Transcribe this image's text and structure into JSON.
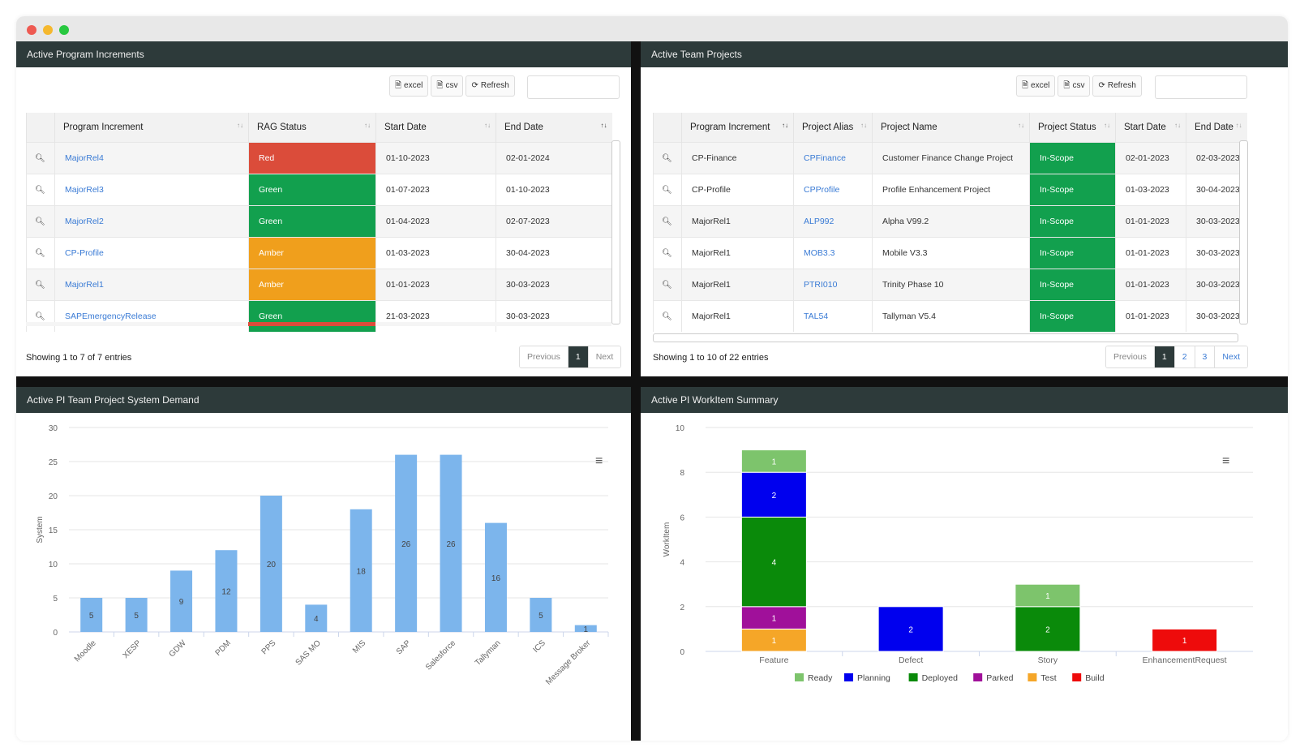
{
  "panels": {
    "pi": {
      "title": "Active Program Increments"
    },
    "tp": {
      "title": "Active Team Projects"
    },
    "demand": {
      "title": "Active PI Team Project System Demand"
    },
    "workitem": {
      "title": "Active PI WorkItem Summary"
    }
  },
  "toolbar": {
    "excel": "excel",
    "csv": "csv",
    "refresh": "Refresh"
  },
  "pi_table": {
    "headers": [
      "Program Increment",
      "RAG Status",
      "Start Date",
      "End Date"
    ],
    "rows": [
      {
        "pi": "MajorRel4",
        "rag": "Red",
        "rag_color": "red",
        "start": "01-10-2023",
        "end": "02-01-2024"
      },
      {
        "pi": "MajorRel3",
        "rag": "Green",
        "rag_color": "green",
        "start": "01-07-2023",
        "end": "01-10-2023"
      },
      {
        "pi": "MajorRel2",
        "rag": "Green",
        "rag_color": "green",
        "start": "01-04-2023",
        "end": "02-07-2023"
      },
      {
        "pi": "CP-Profile",
        "rag": "Amber",
        "rag_color": "amber",
        "start": "01-03-2023",
        "end": "30-04-2023"
      },
      {
        "pi": "MajorRel1",
        "rag": "Amber",
        "rag_color": "amber",
        "start": "01-01-2023",
        "end": "30-03-2023"
      },
      {
        "pi": "SAPEmergencyRelease",
        "rag": "Green",
        "rag_color": "green",
        "start": "21-03-2023",
        "end": "30-03-2023"
      }
    ],
    "info": "Showing 1 to 7 of 7 entries",
    "pager": [
      "Previous",
      "1",
      "Next"
    ]
  },
  "tp_table": {
    "headers": [
      "Program Increment",
      "Project Alias",
      "Project Name",
      "Project Status",
      "Start Date",
      "End Date"
    ],
    "rows": [
      {
        "pi": "CP-Finance",
        "alias": "CPFinance",
        "name": "Customer Finance Change Project",
        "status": "In-Scope",
        "start": "02-01-2023",
        "end": "02-03-2023"
      },
      {
        "pi": "CP-Profile",
        "alias": "CPProfile",
        "name": "Profile Enhancement Project",
        "status": "In-Scope",
        "start": "01-03-2023",
        "end": "30-04-2023"
      },
      {
        "pi": "MajorRel1",
        "alias": "ALP992",
        "name": "Alpha V99.2",
        "status": "In-Scope",
        "start": "01-01-2023",
        "end": "30-03-2023"
      },
      {
        "pi": "MajorRel1",
        "alias": "MOB3.3",
        "name": "Mobile V3.3",
        "status": "In-Scope",
        "start": "01-01-2023",
        "end": "30-03-2023"
      },
      {
        "pi": "MajorRel1",
        "alias": "PTRI010",
        "name": "Trinity Phase 10",
        "status": "In-Scope",
        "start": "01-01-2023",
        "end": "30-03-2023"
      },
      {
        "pi": "MajorRel1",
        "alias": "TAL54",
        "name": "Tallyman V5.4",
        "status": "In-Scope",
        "start": "01-01-2023",
        "end": "30-03-2023"
      }
    ],
    "info": "Showing 1 to 10 of 22 entries",
    "pager": [
      "Previous",
      "1",
      "2",
      "3",
      "Next"
    ]
  },
  "chart_data": [
    {
      "type": "bar",
      "ylabel": "System",
      "ylim": [
        0,
        30
      ],
      "yticks": [
        0,
        5,
        10,
        15,
        20,
        25,
        30
      ],
      "categories": [
        "Moodle",
        "XESP",
        "GDW",
        "PDM",
        "PPS",
        "SAS MO",
        "MIS",
        "SAP",
        "Salesforce",
        "Tallyman",
        "ICS",
        "Message Broker"
      ],
      "values": [
        5,
        5,
        9,
        12,
        20,
        4,
        18,
        26,
        26,
        16,
        5,
        1
      ],
      "color": "#7cb5ec",
      "grid": true
    },
    {
      "type": "bar",
      "stacked": true,
      "ylabel": "WorkItem",
      "ylim": [
        0,
        10
      ],
      "yticks": [
        0,
        2,
        4,
        6,
        8,
        10
      ],
      "categories": [
        "Feature",
        "Defect",
        "Story",
        "EnhancementRequest"
      ],
      "series": [
        {
          "name": "Ready",
          "color": "#7dc46c",
          "values": [
            1,
            0,
            1,
            0
          ]
        },
        {
          "name": "Planning",
          "color": "#0000ee",
          "values": [
            2,
            2,
            0,
            0
          ]
        },
        {
          "name": "Deployed",
          "color": "#0a8a0a",
          "values": [
            4,
            0,
            2,
            0
          ]
        },
        {
          "name": "Parked",
          "color": "#a0109a",
          "values": [
            1,
            0,
            0,
            0
          ]
        },
        {
          "name": "Test",
          "color": "#f5a628",
          "values": [
            1,
            0,
            0,
            0
          ]
        },
        {
          "name": "Build",
          "color": "#ee0b0b",
          "values": [
            0,
            0,
            0,
            1
          ]
        }
      ],
      "legend": "bottom",
      "grid": true
    }
  ]
}
